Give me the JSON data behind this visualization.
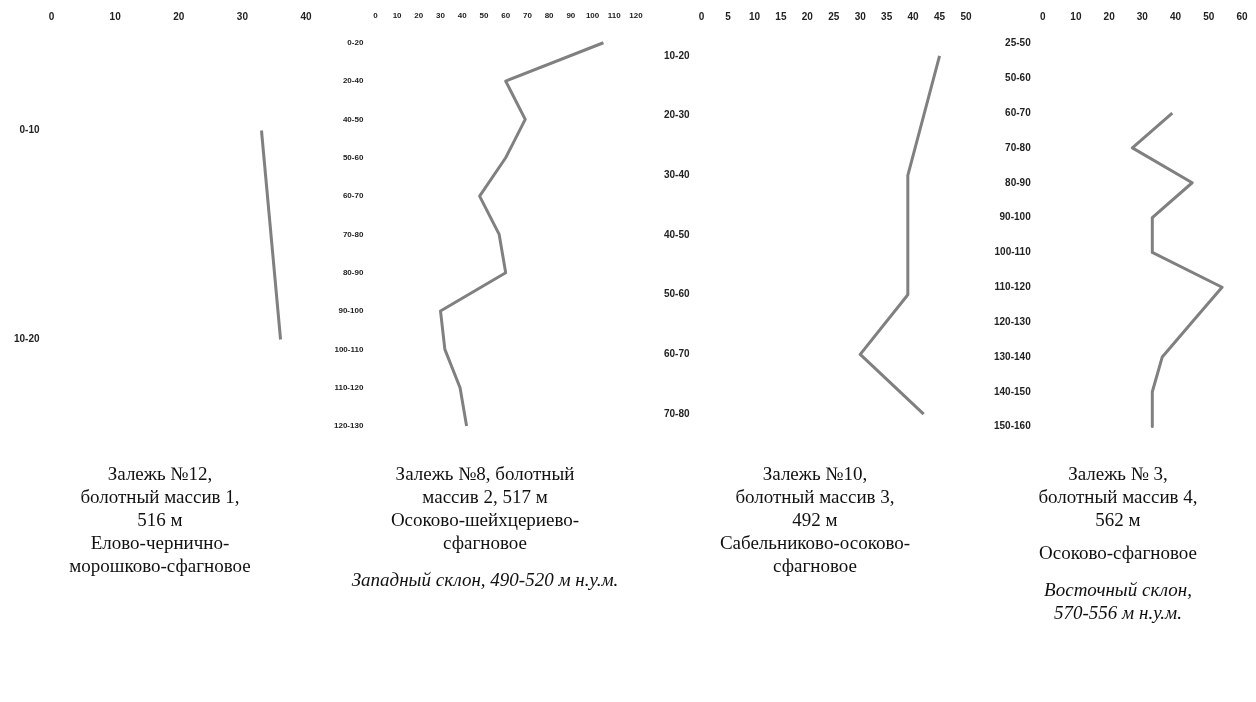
{
  "chart_data": [
    {
      "type": "line",
      "title": "Залежь №12, болотный массив 1, 516 м",
      "subtitle": "Елово-чернично-морошково-сфагновое",
      "categories": [
        "0-10",
        "10-20"
      ],
      "values": [
        33,
        36
      ],
      "orientation": "horizontal",
      "color": "#808080",
      "marker": "none",
      "xlim": [
        0,
        40
      ],
      "xticks": [
        0,
        10,
        20,
        30,
        40
      ]
    },
    {
      "type": "line",
      "title": "Залежь №8, болотный массив 2, 517 м",
      "subtitle": "Осоково-шейхцериево-сфагновое",
      "annotations": [
        "Западный склон, 490-520 м н.у.м."
      ],
      "categories": [
        "0-20",
        "20-40",
        "40-50",
        "50-60",
        "60-70",
        "70-80",
        "80-90",
        "90-100",
        "100-110",
        "110-120",
        "120-130"
      ],
      "values": [
        105,
        60,
        69,
        60,
        48,
        57,
        60,
        30,
        32,
        39,
        42
      ],
      "orientation": "horizontal",
      "color": "#808080",
      "marker": "none",
      "xlim": [
        0,
        120
      ],
      "xticks": [
        0,
        10,
        20,
        30,
        40,
        50,
        60,
        70,
        80,
        90,
        100,
        110,
        120
      ]
    },
    {
      "type": "line",
      "title": "Залежь №10, болотный массив 3, 492 м",
      "subtitle": "Сабельниково-осоково-сфагновое",
      "categories": [
        "10-20",
        "20-30",
        "30-40",
        "40-50",
        "50-60",
        "60-70",
        "70-80"
      ],
      "values": [
        45,
        42,
        39,
        39,
        39,
        30,
        42
      ],
      "orientation": "horizontal",
      "color": "#808080",
      "marker": "none",
      "xlim": [
        0,
        50
      ],
      "xticks": [
        0,
        5,
        10,
        15,
        20,
        25,
        30,
        35,
        40,
        45,
        50
      ]
    },
    {
      "type": "line",
      "title": "Залежь № 3, болотный массив 4, 562 м",
      "subtitle": "Осоково-сфагновое",
      "annotations": [
        "Восточный склон, 570-556 м н.у.м."
      ],
      "categories": [
        "25-50",
        "50-60",
        "60-70",
        "70-80",
        "80-90",
        "90-100",
        "100-110",
        "110-120",
        "120-130",
        "130-140",
        "140-150",
        "150-160"
      ],
      "values": [
        null,
        null,
        39,
        27,
        45,
        33,
        33,
        54,
        45,
        36,
        33,
        33
      ],
      "orientation": "horizontal",
      "color": "#808080",
      "marker": "none",
      "xlim": [
        0,
        60
      ],
      "xticks": [
        0,
        10,
        20,
        30,
        40,
        50,
        60
      ]
    }
  ]
}
